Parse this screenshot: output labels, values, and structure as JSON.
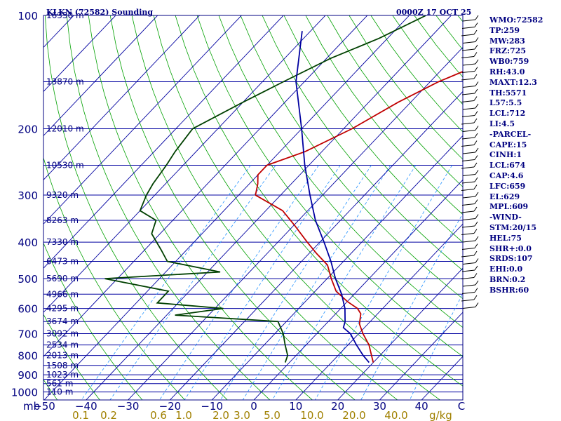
{
  "header": {
    "station": "KLKN (72582) Sounding",
    "time": "0000Z 17 OCT 25"
  },
  "stats": [
    "WMO:72582",
    "TP:259",
    "MW:283",
    "FRZ:725",
    "WB0:759",
    "RH:43.0",
    "MAXT:12.3",
    "TH:5571",
    "L57:5.5",
    "LCL:712",
    "LI:4.5",
    "-PARCEL-",
    "CAPE:15",
    "CINH:1",
    "LCL:674",
    "CAP:4.6",
    "LFC:659",
    "EL:629",
    "MPL:609",
    "-WIND-",
    "STM:20/15",
    "HEL:75",
    "SHR+:0.0",
    "SRDS:107",
    "EHI:0.0",
    "BRN:0.2",
    "BSHR:60"
  ],
  "chart_data": {
    "type": "line",
    "diagram": "skew-T log-P",
    "x_axis": {
      "label": "C",
      "ticks": [
        -50,
        -40,
        -30,
        -20,
        -10,
        0,
        10,
        20,
        30,
        40
      ],
      "range": [
        -50,
        50
      ],
      "corner_label": "mb"
    },
    "y_axis": {
      "scale": "log",
      "ticks": [
        100,
        200,
        300,
        400,
        500,
        600,
        700,
        800,
        900,
        1000
      ],
      "range": [
        100,
        1050
      ]
    },
    "isobars_mb": [
      100,
      150,
      200,
      250,
      300,
      350,
      400,
      450,
      500,
      550,
      600,
      650,
      700,
      750,
      800,
      850,
      900,
      925,
      950,
      1000
    ],
    "height_labels": [
      {
        "p": 100,
        "label": "16330 m"
      },
      {
        "p": 150,
        "label": "13870 m"
      },
      {
        "p": 200,
        "label": "12010 m"
      },
      {
        "p": 250,
        "label": "10530 m"
      },
      {
        "p": 300,
        "label": "9320 m"
      },
      {
        "p": 350,
        "label": "8263 m"
      },
      {
        "p": 400,
        "label": "7330 m"
      },
      {
        "p": 450,
        "label": "6473 m"
      },
      {
        "p": 500,
        "label": "5690 m"
      },
      {
        "p": 550,
        "label": "4966 m"
      },
      {
        "p": 600,
        "label": "4295 m"
      },
      {
        "p": 650,
        "label": "3674 m"
      },
      {
        "p": 700,
        "label": "3092 m"
      },
      {
        "p": 750,
        "label": "2534 m"
      },
      {
        "p": 800,
        "label": "2013 m"
      },
      {
        "p": 850,
        "label": "1508 m"
      },
      {
        "p": 900,
        "label": "1023 m"
      },
      {
        "p": 950,
        "label": "561 m"
      },
      {
        "p": 1000,
        "label": "110 m"
      }
    ],
    "mixing_ratio_labels": {
      "unit": "g/kg",
      "values": [
        "0.1",
        "0.2",
        "0.6",
        "1.0",
        "2.0",
        "3.0",
        "5.0",
        "10.0",
        "20.0",
        "40.0"
      ]
    },
    "series": [
      {
        "role": "temperature",
        "color": "#c00000",
        "points": [
          [
            100,
            -12
          ],
          [
            115,
            -16
          ],
          [
            130,
            -20
          ],
          [
            150,
            -28
          ],
          [
            170,
            -33
          ],
          [
            200,
            -38
          ],
          [
            230,
            -44
          ],
          [
            250,
            -50
          ],
          [
            265,
            -50
          ],
          [
            280,
            -48
          ],
          [
            300,
            -46
          ],
          [
            330,
            -36
          ],
          [
            360,
            -30
          ],
          [
            400,
            -23
          ],
          [
            430,
            -18
          ],
          [
            460,
            -13
          ],
          [
            500,
            -9
          ],
          [
            540,
            -5
          ],
          [
            575,
            0
          ],
          [
            600,
            4
          ],
          [
            620,
            6
          ],
          [
            640,
            7
          ],
          [
            660,
            8
          ],
          [
            700,
            11
          ],
          [
            750,
            15
          ],
          [
            800,
            18
          ],
          [
            835,
            20
          ]
        ]
      },
      {
        "role": "dewpoint",
        "color": "#004000",
        "points": [
          [
            100,
            -46
          ],
          [
            115,
            -52
          ],
          [
            130,
            -59
          ],
          [
            150,
            -65
          ],
          [
            170,
            -70
          ],
          [
            200,
            -76
          ],
          [
            230,
            -75
          ],
          [
            250,
            -74
          ],
          [
            280,
            -73
          ],
          [
            300,
            -72
          ],
          [
            330,
            -70
          ],
          [
            350,
            -64
          ],
          [
            380,
            -62
          ],
          [
            420,
            -56
          ],
          [
            450,
            -52
          ],
          [
            480,
            -37
          ],
          [
            500,
            -63
          ],
          [
            540,
            -45
          ],
          [
            580,
            -45
          ],
          [
            600,
            -28
          ],
          [
            625,
            -38
          ],
          [
            650,
            -12
          ],
          [
            700,
            -8
          ],
          [
            750,
            -5
          ],
          [
            800,
            -2
          ],
          [
            835,
            -1
          ]
        ]
      },
      {
        "role": "parcel",
        "color": "#0000a0",
        "points": [
          [
            110,
            -72
          ],
          [
            150,
            -62
          ],
          [
            200,
            -50
          ],
          [
            250,
            -41
          ],
          [
            300,
            -33
          ],
          [
            350,
            -26
          ],
          [
            400,
            -19
          ],
          [
            450,
            -13
          ],
          [
            500,
            -8
          ],
          [
            550,
            -3
          ],
          [
            600,
            1
          ],
          [
            650,
            4
          ],
          [
            675,
            5
          ],
          [
            700,
            8
          ],
          [
            750,
            12
          ],
          [
            800,
            16
          ],
          [
            835,
            19
          ]
        ]
      }
    ]
  }
}
